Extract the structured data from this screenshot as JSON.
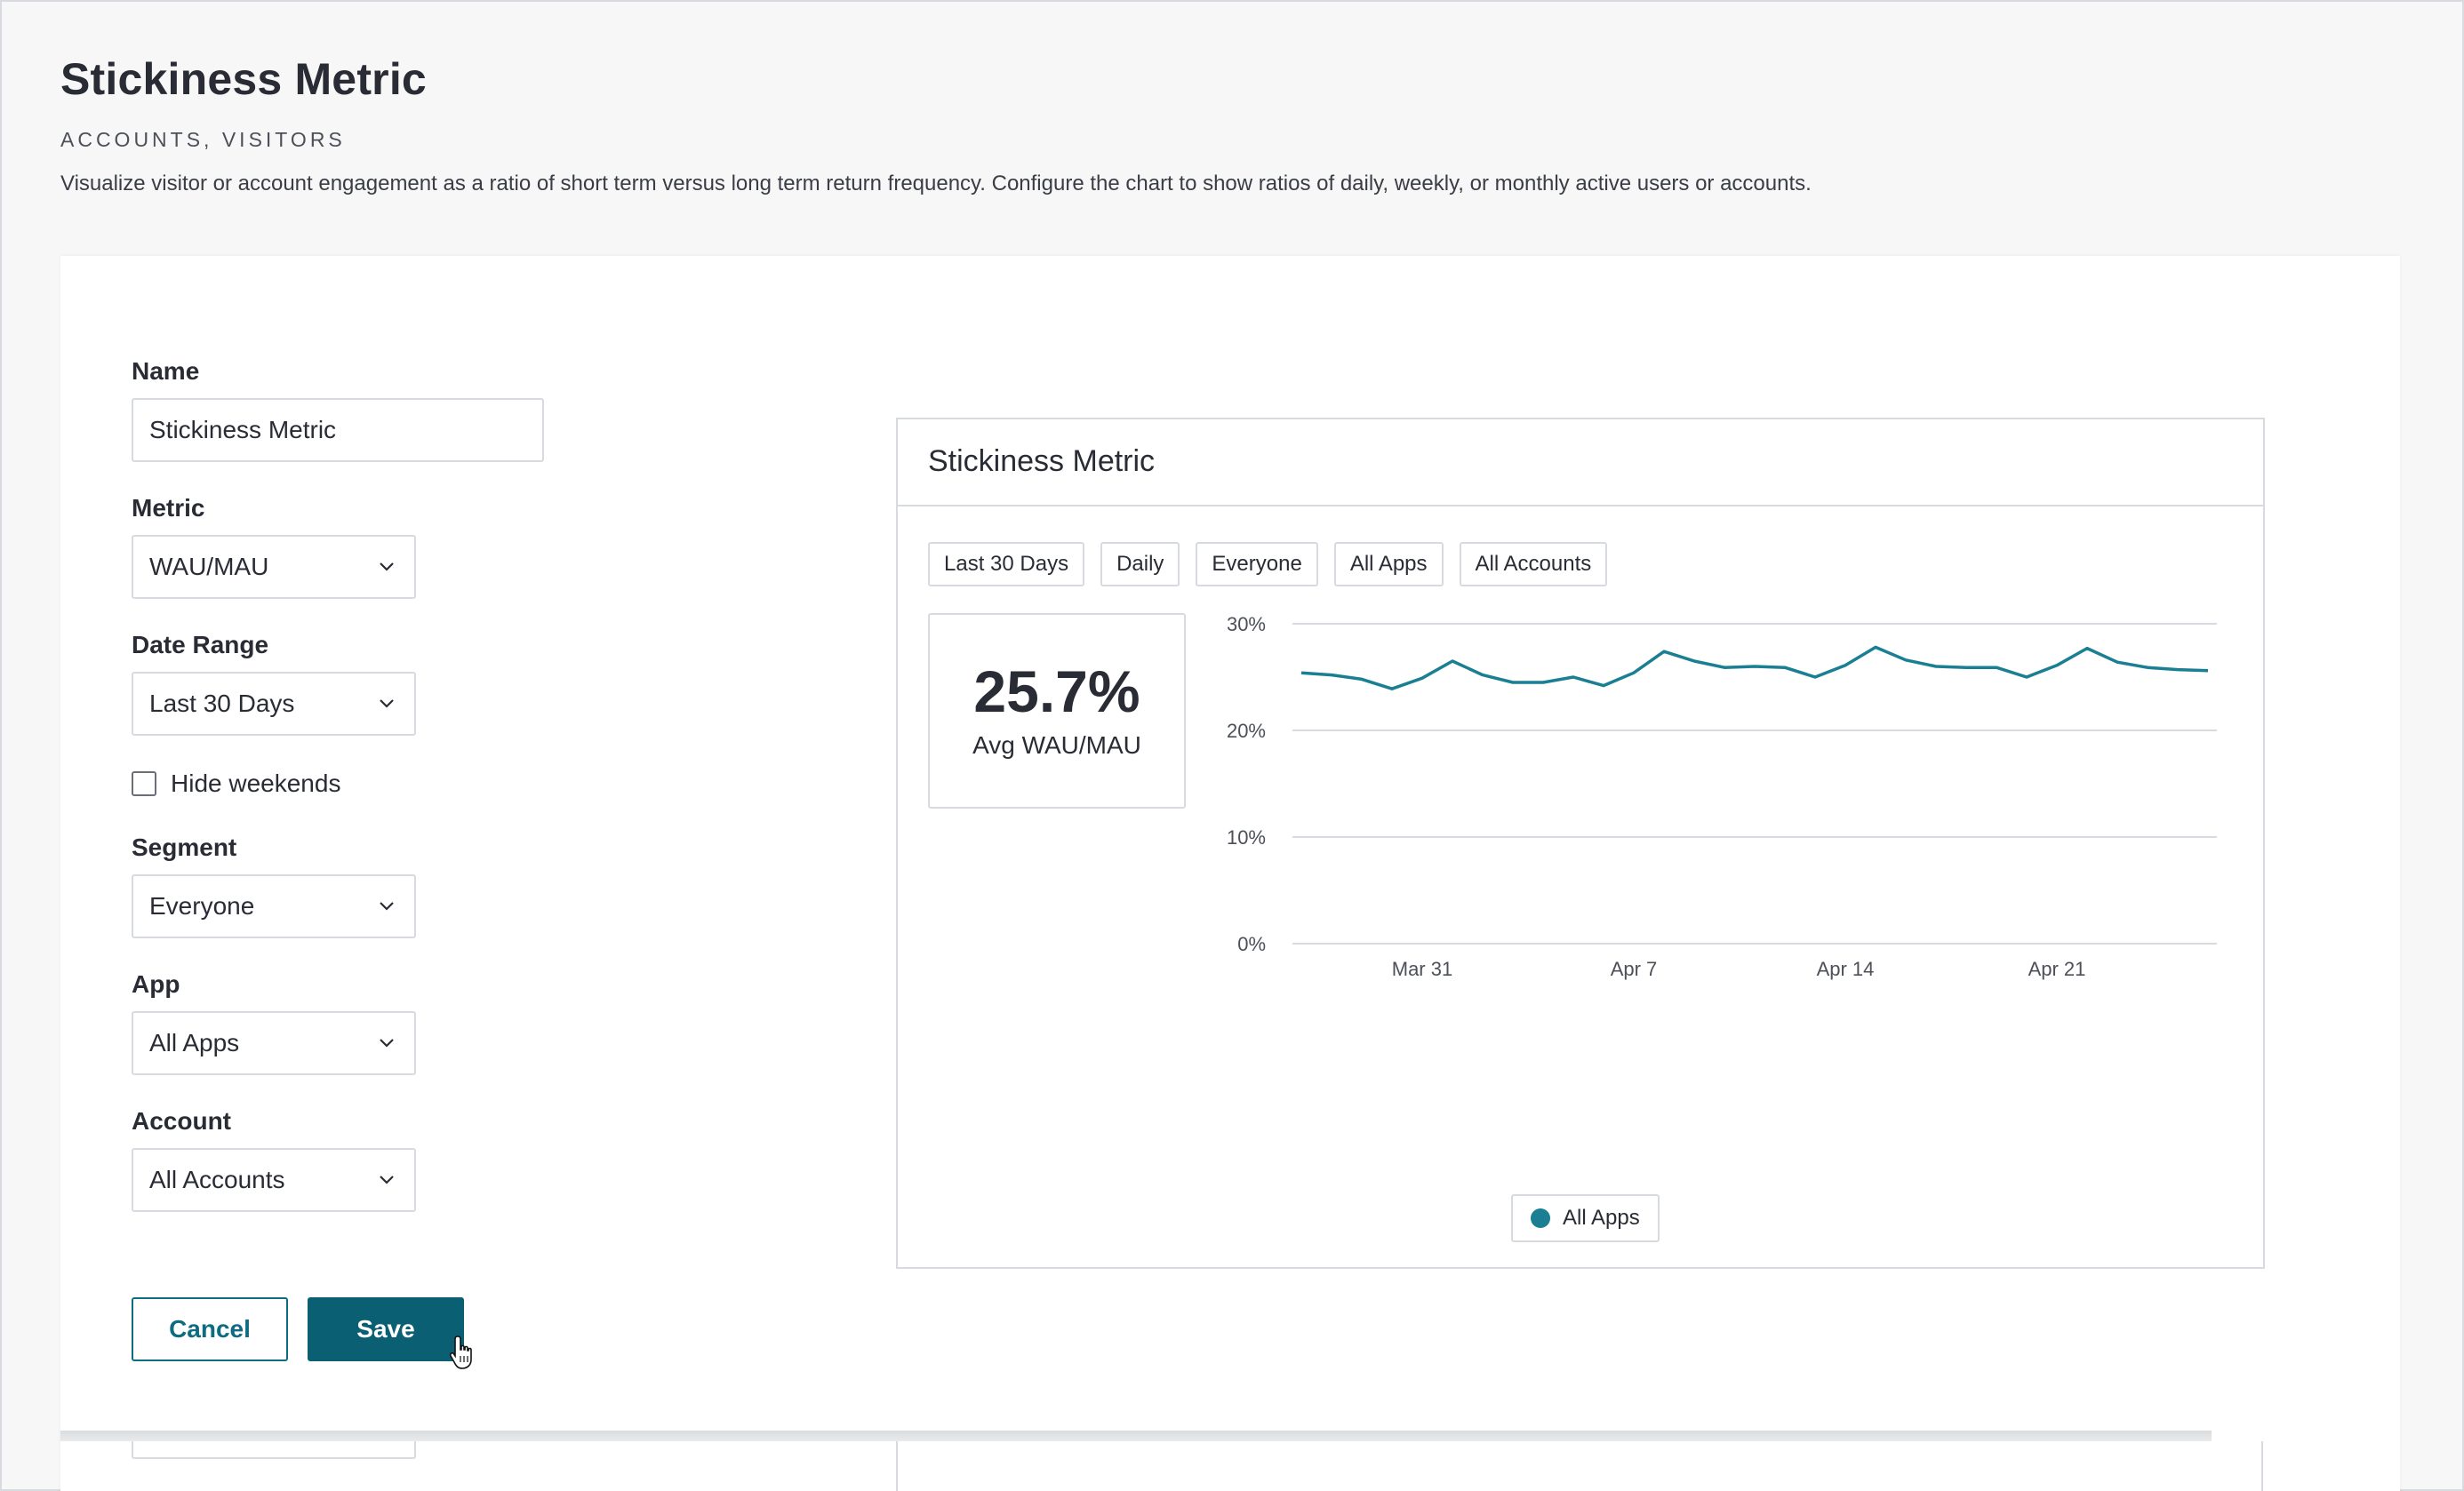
{
  "page": {
    "title": "Stickiness Metric",
    "subtitle": "ACCOUNTS, VISITORS",
    "description": "Visualize visitor or account engagement as a ratio of short term versus long term return frequency. Configure the chart to show ratios of daily, weekly, or monthly active users or accounts."
  },
  "form": {
    "name_label": "Name",
    "name_value": "Stickiness Metric",
    "metric_label": "Metric",
    "metric_value": "WAU/MAU",
    "date_range_label": "Date Range",
    "date_range_value": "Last 30 Days",
    "hide_weekends_label": "Hide weekends",
    "hide_weekends_checked": false,
    "segment_label": "Segment",
    "segment_value": "Everyone",
    "app_label": "App",
    "app_value": "All Apps",
    "account_label": "Account",
    "account_value": "All Accounts",
    "cancel_label": "Cancel",
    "save_label": "Save"
  },
  "preview": {
    "title": "Stickiness Metric",
    "filters": [
      "Last 30 Days",
      "Daily",
      "Everyone",
      "All Apps",
      "All Accounts"
    ],
    "kpi_value": "25.7%",
    "kpi_label": "Avg WAU/MAU",
    "legend_label": "All Apps"
  },
  "colors": {
    "accent": "#0b5f72",
    "series": "#1a7f93",
    "border": "#d7dbe0"
  },
  "chart_data": {
    "type": "line",
    "y_ticks": [
      "30%",
      "20%",
      "10%",
      "0%"
    ],
    "x_ticks": [
      "Mar 31",
      "Apr 7",
      "Apr 14",
      "Apr 21"
    ],
    "ylim": [
      0,
      30
    ],
    "grid": true,
    "legend": "bottom-center",
    "series": [
      {
        "name": "All Apps",
        "x": [
          "Mar 27",
          "Mar 28",
          "Mar 29",
          "Mar 30",
          "Mar 31",
          "Apr 1",
          "Apr 2",
          "Apr 3",
          "Apr 4",
          "Apr 5",
          "Apr 6",
          "Apr 7",
          "Apr 8",
          "Apr 9",
          "Apr 10",
          "Apr 11",
          "Apr 12",
          "Apr 13",
          "Apr 14",
          "Apr 15",
          "Apr 16",
          "Apr 17",
          "Apr 18",
          "Apr 19",
          "Apr 20",
          "Apr 21",
          "Apr 22",
          "Apr 23",
          "Apr 24",
          "Apr 25",
          "Apr 26"
        ],
        "values": [
          25.4,
          25.2,
          24.8,
          23.9,
          24.9,
          26.5,
          25.2,
          24.5,
          24.5,
          25.0,
          24.2,
          25.4,
          27.4,
          26.5,
          25.9,
          26.0,
          25.9,
          25.0,
          26.1,
          27.8,
          26.6,
          26.0,
          25.9,
          25.9,
          25.0,
          26.1,
          27.7,
          26.4,
          25.9,
          25.7,
          25.6
        ]
      }
    ]
  }
}
